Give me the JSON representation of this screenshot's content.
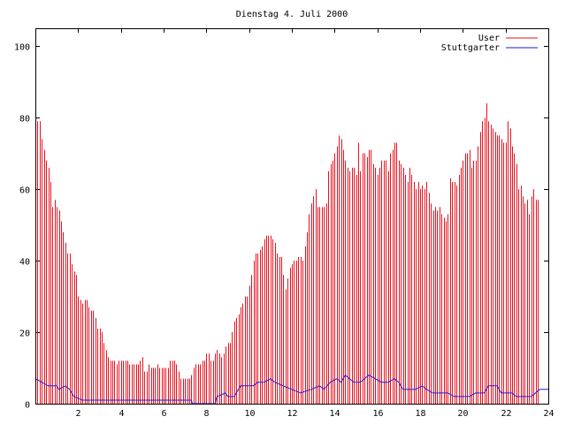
{
  "chart_data": {
    "type": "bar",
    "title": "Dienstag 4. Juli 2000",
    "xlim": [
      0,
      24
    ],
    "ylim": [
      0,
      105
    ],
    "x_ticks": [
      2,
      4,
      6,
      8,
      10,
      12,
      14,
      16,
      18,
      20,
      22,
      24
    ],
    "y_ticks": [
      0,
      20,
      40,
      60,
      80,
      100
    ],
    "legend_position": "top-right",
    "series": [
      {
        "name": "User",
        "type": "impulses",
        "color": "#e8121f",
        "points": [
          [
            0.0,
            78
          ],
          [
            0.1,
            79
          ],
          [
            0.2,
            79
          ],
          [
            0.3,
            74
          ],
          [
            0.4,
            71
          ],
          [
            0.5,
            68
          ],
          [
            0.6,
            66
          ],
          [
            0.7,
            62
          ],
          [
            0.8,
            55
          ],
          [
            0.9,
            57
          ],
          [
            1.0,
            55
          ],
          [
            1.1,
            54
          ],
          [
            1.2,
            51
          ],
          [
            1.3,
            48
          ],
          [
            1.4,
            45
          ],
          [
            1.5,
            42
          ],
          [
            1.6,
            42
          ],
          [
            1.7,
            39
          ],
          [
            1.8,
            37
          ],
          [
            1.9,
            36
          ],
          [
            2.0,
            30
          ],
          [
            2.1,
            29
          ],
          [
            2.2,
            28
          ],
          [
            2.3,
            29
          ],
          [
            2.4,
            29
          ],
          [
            2.5,
            27
          ],
          [
            2.6,
            26
          ],
          [
            2.7,
            26
          ],
          [
            2.8,
            24
          ],
          [
            2.9,
            21
          ],
          [
            3.0,
            21
          ],
          [
            3.1,
            20
          ],
          [
            3.2,
            17
          ],
          [
            3.3,
            15
          ],
          [
            3.4,
            13
          ],
          [
            3.5,
            12
          ],
          [
            3.6,
            12
          ],
          [
            3.7,
            12
          ],
          [
            3.8,
            11
          ],
          [
            3.9,
            12
          ],
          [
            4.0,
            12
          ],
          [
            4.1,
            12
          ],
          [
            4.2,
            12
          ],
          [
            4.3,
            12
          ],
          [
            4.4,
            11
          ],
          [
            4.5,
            11
          ],
          [
            4.6,
            11
          ],
          [
            4.7,
            11
          ],
          [
            4.8,
            11
          ],
          [
            4.9,
            12
          ],
          [
            5.0,
            13
          ],
          [
            5.1,
            9
          ],
          [
            5.2,
            9
          ],
          [
            5.3,
            11
          ],
          [
            5.4,
            10
          ],
          [
            5.5,
            10
          ],
          [
            5.6,
            10
          ],
          [
            5.7,
            11
          ],
          [
            5.8,
            10
          ],
          [
            5.9,
            10
          ],
          [
            6.0,
            10
          ],
          [
            6.1,
            10
          ],
          [
            6.2,
            10
          ],
          [
            6.3,
            12
          ],
          [
            6.4,
            12
          ],
          [
            6.5,
            12
          ],
          [
            6.6,
            11
          ],
          [
            6.7,
            9
          ],
          [
            6.8,
            7
          ],
          [
            6.9,
            7
          ],
          [
            7.0,
            7
          ],
          [
            7.1,
            7
          ],
          [
            7.2,
            7
          ],
          [
            7.3,
            8
          ],
          [
            7.4,
            10
          ],
          [
            7.5,
            11
          ],
          [
            7.6,
            11
          ],
          [
            7.7,
            11
          ],
          [
            7.8,
            12
          ],
          [
            7.9,
            12
          ],
          [
            8.0,
            14
          ],
          [
            8.1,
            14
          ],
          [
            8.2,
            12
          ],
          [
            8.3,
            12
          ],
          [
            8.4,
            14
          ],
          [
            8.5,
            15
          ],
          [
            8.6,
            14
          ],
          [
            8.7,
            13
          ],
          [
            8.8,
            14
          ],
          [
            8.9,
            16
          ],
          [
            9.0,
            17
          ],
          [
            9.1,
            17
          ],
          [
            9.2,
            20
          ],
          [
            9.3,
            23
          ],
          [
            9.4,
            24
          ],
          [
            9.5,
            25
          ],
          [
            9.6,
            27
          ],
          [
            9.7,
            28
          ],
          [
            9.8,
            30
          ],
          [
            9.9,
            30
          ],
          [
            10.0,
            33
          ],
          [
            10.1,
            36
          ],
          [
            10.2,
            40
          ],
          [
            10.3,
            42
          ],
          [
            10.4,
            42
          ],
          [
            10.5,
            43
          ],
          [
            10.6,
            44
          ],
          [
            10.7,
            46
          ],
          [
            10.8,
            47
          ],
          [
            10.9,
            47
          ],
          [
            11.0,
            47
          ],
          [
            11.1,
            46
          ],
          [
            11.2,
            45
          ],
          [
            11.3,
            42
          ],
          [
            11.4,
            41
          ],
          [
            11.5,
            41
          ],
          [
            11.6,
            36
          ],
          [
            11.7,
            32
          ],
          [
            11.8,
            35
          ],
          [
            11.9,
            38
          ],
          [
            12.0,
            39
          ],
          [
            12.1,
            40
          ],
          [
            12.2,
            40
          ],
          [
            12.3,
            41
          ],
          [
            12.4,
            41
          ],
          [
            12.5,
            40
          ],
          [
            12.6,
            44
          ],
          [
            12.7,
            48
          ],
          [
            12.8,
            53
          ],
          [
            12.9,
            56
          ],
          [
            13.0,
            58
          ],
          [
            13.1,
            60
          ],
          [
            13.2,
            55
          ],
          [
            13.3,
            55
          ],
          [
            13.4,
            55
          ],
          [
            13.5,
            55
          ],
          [
            13.6,
            56
          ],
          [
            13.7,
            65
          ],
          [
            13.8,
            67
          ],
          [
            13.9,
            68
          ],
          [
            14.0,
            70
          ],
          [
            14.1,
            72
          ],
          [
            14.2,
            75
          ],
          [
            14.3,
            74
          ],
          [
            14.4,
            71
          ],
          [
            14.5,
            68
          ],
          [
            14.6,
            66
          ],
          [
            14.7,
            65
          ],
          [
            14.8,
            66
          ],
          [
            14.9,
            66
          ],
          [
            15.0,
            64
          ],
          [
            15.1,
            73
          ],
          [
            15.2,
            65
          ],
          [
            15.3,
            70
          ],
          [
            15.4,
            70
          ],
          [
            15.5,
            69
          ],
          [
            15.6,
            71
          ],
          [
            15.7,
            71
          ],
          [
            15.8,
            67
          ],
          [
            15.9,
            66
          ],
          [
            16.0,
            64
          ],
          [
            16.1,
            66
          ],
          [
            16.2,
            68
          ],
          [
            16.3,
            68
          ],
          [
            16.4,
            68
          ],
          [
            16.5,
            65
          ],
          [
            16.6,
            70
          ],
          [
            16.7,
            71
          ],
          [
            16.8,
            73
          ],
          [
            16.9,
            73
          ],
          [
            17.0,
            68
          ],
          [
            17.1,
            67
          ],
          [
            17.2,
            66
          ],
          [
            17.3,
            64
          ],
          [
            17.4,
            62
          ],
          [
            17.5,
            66
          ],
          [
            17.6,
            64
          ],
          [
            17.7,
            62
          ],
          [
            17.8,
            60
          ],
          [
            17.9,
            62
          ],
          [
            18.0,
            60
          ],
          [
            18.1,
            61
          ],
          [
            18.2,
            60
          ],
          [
            18.3,
            62
          ],
          [
            18.4,
            59
          ],
          [
            18.5,
            56
          ],
          [
            18.6,
            54
          ],
          [
            18.7,
            55
          ],
          [
            18.8,
            54
          ],
          [
            18.9,
            55
          ],
          [
            19.0,
            53
          ],
          [
            19.1,
            52
          ],
          [
            19.2,
            51
          ],
          [
            19.3,
            53
          ],
          [
            19.4,
            63
          ],
          [
            19.5,
            62
          ],
          [
            19.6,
            62
          ],
          [
            19.7,
            61
          ],
          [
            19.8,
            64
          ],
          [
            19.9,
            66
          ],
          [
            20.0,
            68
          ],
          [
            20.1,
            70
          ],
          [
            20.2,
            70
          ],
          [
            20.3,
            71
          ],
          [
            20.4,
            66
          ],
          [
            20.5,
            68
          ],
          [
            20.6,
            68
          ],
          [
            20.7,
            72
          ],
          [
            20.8,
            76
          ],
          [
            20.9,
            79
          ],
          [
            21.0,
            80
          ],
          [
            21.1,
            84
          ],
          [
            21.2,
            79
          ],
          [
            21.3,
            78
          ],
          [
            21.4,
            77
          ],
          [
            21.5,
            76
          ],
          [
            21.6,
            75
          ],
          [
            21.7,
            75
          ],
          [
            21.8,
            74
          ],
          [
            21.9,
            73
          ],
          [
            22.0,
            73
          ],
          [
            22.1,
            79
          ],
          [
            22.2,
            77
          ],
          [
            22.3,
            72
          ],
          [
            22.4,
            70
          ],
          [
            22.5,
            67
          ],
          [
            22.6,
            60
          ],
          [
            22.7,
            61
          ],
          [
            22.8,
            58
          ],
          [
            22.9,
            56
          ],
          [
            23.0,
            57
          ],
          [
            23.1,
            53
          ],
          [
            23.2,
            58
          ],
          [
            23.3,
            60
          ],
          [
            23.4,
            57
          ],
          [
            23.5,
            57
          ]
        ]
      },
      {
        "name": "Stuttgarter",
        "type": "line",
        "color": "#1a1ad8",
        "points": [
          [
            0,
            7
          ],
          [
            0.3,
            6
          ],
          [
            0.6,
            5
          ],
          [
            1.0,
            5
          ],
          [
            1.1,
            4
          ],
          [
            1.4,
            5
          ],
          [
            1.6,
            4
          ],
          [
            1.8,
            2
          ],
          [
            2.2,
            1
          ],
          [
            7.3,
            1
          ],
          [
            7.35,
            0
          ],
          [
            8.4,
            0
          ],
          [
            8.5,
            2
          ],
          [
            8.9,
            3
          ],
          [
            9.0,
            2
          ],
          [
            9.3,
            2
          ],
          [
            9.6,
            5
          ],
          [
            10.2,
            5
          ],
          [
            10.4,
            6
          ],
          [
            10.7,
            6
          ],
          [
            11.0,
            7
          ],
          [
            11.2,
            6
          ],
          [
            11.6,
            5
          ],
          [
            12.0,
            4
          ],
          [
            12.4,
            3
          ],
          [
            12.9,
            4
          ],
          [
            13.3,
            5
          ],
          [
            13.5,
            4
          ],
          [
            13.8,
            6
          ],
          [
            14.1,
            7
          ],
          [
            14.3,
            6
          ],
          [
            14.5,
            8
          ],
          [
            14.7,
            7
          ],
          [
            14.9,
            6
          ],
          [
            15.2,
            6
          ],
          [
            15.6,
            8
          ],
          [
            15.9,
            7
          ],
          [
            16.2,
            6
          ],
          [
            16.5,
            6
          ],
          [
            16.8,
            7
          ],
          [
            17.0,
            6
          ],
          [
            17.2,
            4
          ],
          [
            17.8,
            4
          ],
          [
            18.1,
            5
          ],
          [
            18.3,
            4
          ],
          [
            18.6,
            3
          ],
          [
            19.3,
            3
          ],
          [
            19.6,
            2
          ],
          [
            20.3,
            2
          ],
          [
            20.6,
            3
          ],
          [
            21.0,
            3
          ],
          [
            21.2,
            5
          ],
          [
            21.6,
            5
          ],
          [
            21.8,
            3
          ],
          [
            22.3,
            3
          ],
          [
            22.5,
            2
          ],
          [
            23.2,
            2
          ],
          [
            23.4,
            3
          ],
          [
            23.6,
            4
          ],
          [
            24.0,
            4
          ]
        ]
      }
    ]
  }
}
